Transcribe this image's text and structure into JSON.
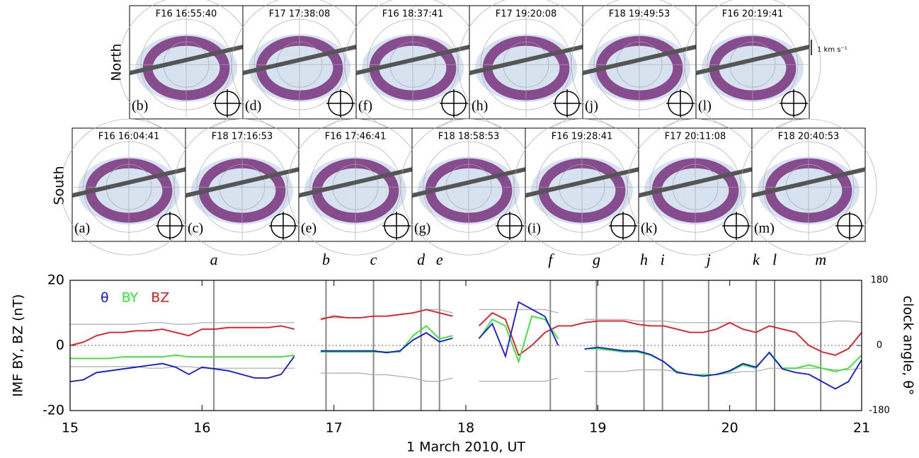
{
  "panels": {
    "north_label": "North",
    "south_label": "South",
    "scale_label": "1 km s⁻¹",
    "north": [
      {
        "label": "(b)",
        "title": "F16 16:55:40"
      },
      {
        "label": "(d)",
        "title": "F17 17:38:08"
      },
      {
        "label": "(f)",
        "title": "F16 18:37:41"
      },
      {
        "label": "(h)",
        "title": "F17 19:20:08"
      },
      {
        "label": "(j)",
        "title": "F18 19:49:53"
      },
      {
        "label": "(l)",
        "title": "F16 20:19:41"
      }
    ],
    "south": [
      {
        "label": "(a)",
        "title": "F16 16:04:41"
      },
      {
        "label": "(c)",
        "title": "F18 17:16:53"
      },
      {
        "label": "(e)",
        "title": "F16 17:46:41"
      },
      {
        "label": "(g)",
        "title": "F18 18:58:53"
      },
      {
        "label": "(i)",
        "title": "F16 19:28:41"
      },
      {
        "label": "(k)",
        "title": "F17 20:11:08"
      },
      {
        "label": "(m)",
        "title": "F18 20:40:53"
      }
    ]
  },
  "chart_data": {
    "type": "line",
    "x_label": "1 March 2010, UT",
    "y_label": "IMF BY, BZ (nT)",
    "y2_label": "clock angle, θ°",
    "xlim": [
      15,
      21
    ],
    "xticks": [
      15,
      16,
      17,
      18,
      19,
      20,
      21
    ],
    "ylim": [
      -20,
      20
    ],
    "yticks": [
      -20,
      0,
      20
    ],
    "y2lim": [
      -180,
      180
    ],
    "y2ticks": [
      -180,
      0,
      180
    ],
    "zero_line": true,
    "x": [
      15,
      15.1,
      15.2,
      15.3,
      15.4,
      15.5,
      15.6,
      15.7,
      15.8,
      15.9,
      16,
      16.1,
      16.2,
      16.3,
      16.4,
      16.5,
      16.6,
      16.7,
      16.8,
      16.9,
      17,
      17.1,
      17.2,
      17.3,
      17.4,
      17.5,
      17.6,
      17.7,
      17.8,
      17.9,
      18,
      18.1,
      18.2,
      18.3,
      18.4,
      18.5,
      18.6,
      18.7,
      18.8,
      18.9,
      19,
      19.1,
      19.2,
      19.3,
      19.4,
      19.5,
      19.6,
      19.7,
      19.8,
      19.9,
      20,
      20.1,
      20.2,
      20.3,
      20.4,
      20.5,
      20.6,
      20.7,
      20.8,
      20.9,
      21
    ],
    "series": [
      {
        "color": "#aaaaaa",
        "values": [
          6.5,
          6.5,
          6.5,
          6.5,
          6.5,
          6.5,
          7,
          7,
          6.5,
          6.5,
          7,
          7,
          7,
          7,
          7,
          7,
          7,
          7,
          null,
          8.5,
          8.5,
          8.5,
          8.5,
          9,
          9,
          9.5,
          10,
          11,
          11,
          10,
          null,
          11,
          11,
          11,
          11,
          11,
          11,
          10,
          null,
          8,
          8,
          8,
          8,
          7.5,
          7.5,
          7.5,
          7,
          7,
          7,
          7,
          7,
          7,
          7,
          7,
          7,
          7,
          7,
          7,
          7.5,
          7.5,
          7
        ]
      },
      {
        "color": "#aaaaaa",
        "values": [
          -6.5,
          -6.5,
          -6.5,
          -6.5,
          -6.5,
          -6.5,
          -7,
          -7,
          -6.5,
          -6.5,
          -7,
          -7,
          -7,
          -7,
          -7,
          -7,
          -7,
          -7,
          null,
          -8.5,
          -8.5,
          -8.5,
          -8.5,
          -9,
          -9,
          -9.5,
          -10,
          -11,
          -11,
          -10,
          null,
          -11,
          -11,
          -11,
          -11,
          -11,
          -11,
          -10,
          null,
          -8,
          -8,
          -8,
          -8,
          -7.5,
          -7.5,
          -7.5,
          -8,
          -9,
          -9,
          -9,
          -8.5,
          -8,
          -8,
          -7,
          -7,
          -7,
          -7,
          -7,
          -7.5,
          -7.5,
          -7
        ]
      },
      {
        "name": "BZ",
        "color": "#e8141e",
        "values": [
          0,
          1,
          3,
          4,
          4,
          4.5,
          4.5,
          5,
          4,
          3,
          5,
          5,
          5.5,
          5.5,
          5.5,
          5.5,
          6,
          5,
          null,
          8,
          9,
          8.5,
          8.5,
          9,
          9,
          9.5,
          10,
          11,
          10,
          9,
          null,
          6,
          10,
          8,
          -3,
          0,
          4,
          6,
          6,
          7,
          7.5,
          7.5,
          7.5,
          6.5,
          6,
          6,
          5,
          4,
          4,
          5,
          7,
          5,
          4,
          6,
          5,
          4,
          0,
          -2,
          -3,
          -1,
          4
        ]
      },
      {
        "name": "BY",
        "color": "#2ee82e",
        "values": [
          -4,
          -4,
          -4,
          -4,
          -3.5,
          -3.5,
          -3.5,
          -3.5,
          -3,
          -3.5,
          -3.5,
          -3.5,
          -3.5,
          -3.5,
          -3.5,
          -3.5,
          -3.5,
          -3,
          null,
          -2,
          -2,
          -2,
          -2,
          -2,
          -2,
          -2,
          3,
          6,
          2,
          3,
          null,
          2,
          8,
          6,
          -5,
          9,
          8,
          2,
          null,
          -1,
          -1,
          -1.5,
          -2,
          -2,
          -3,
          -5,
          -8,
          -9,
          -9,
          -9,
          -8,
          -6,
          -7,
          -2,
          -7,
          -7,
          -6,
          -7,
          -8,
          -7,
          -3
        ]
      },
      {
        "name": "θ",
        "color": "#1414e0",
        "axis": "y2",
        "values": [
          -100,
          -95,
          -75,
          -70,
          -65,
          -60,
          -55,
          -50,
          -60,
          -80,
          -60,
          -65,
          -70,
          -80,
          -90,
          -90,
          -80,
          -30,
          null,
          -15,
          -15,
          -15,
          -15,
          -15,
          -20,
          -15,
          15,
          35,
          10,
          20,
          null,
          20,
          60,
          -30,
          120,
          100,
          80,
          0,
          null,
          -10,
          -5,
          -10,
          -15,
          -15,
          -25,
          -45,
          -75,
          -80,
          -85,
          -80,
          -70,
          -50,
          -60,
          -20,
          -65,
          -75,
          -80,
          -100,
          -120,
          -100,
          -40
        ]
      }
    ],
    "markers": [
      {
        "x": 16.09,
        "label": "a"
      },
      {
        "x": 16.94,
        "label": "b"
      },
      {
        "x": 17.3,
        "label": "c"
      },
      {
        "x": 17.66,
        "label": "d"
      },
      {
        "x": 17.8,
        "label": "e"
      },
      {
        "x": 18.64,
        "label": "f"
      },
      {
        "x": 18.99,
        "label": "g"
      },
      {
        "x": 19.35,
        "label": "h"
      },
      {
        "x": 19.49,
        "label": "i"
      },
      {
        "x": 19.84,
        "label": "j"
      },
      {
        "x": 20.2,
        "label": "k"
      },
      {
        "x": 20.34,
        "label": "l"
      },
      {
        "x": 20.69,
        "label": "m"
      }
    ]
  }
}
